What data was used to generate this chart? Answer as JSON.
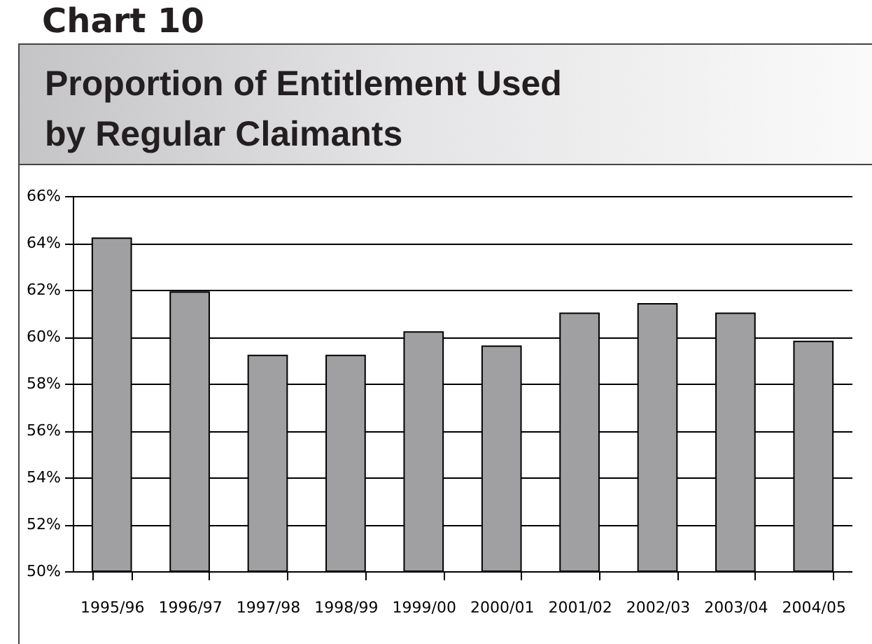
{
  "chart_data": {
    "type": "bar",
    "title": "Proportion of Entitlement Used by Regular Claimants",
    "annotations": [
      "Chart 10"
    ],
    "categories": [
      "1995/96",
      "1996/97",
      "1997/98",
      "1998/99",
      "1999/00",
      "2000/01",
      "2001/02",
      "2002/03",
      "2003/04",
      "2004/05"
    ],
    "values": [
      64.2,
      61.9,
      59.2,
      59.2,
      60.2,
      59.6,
      61.0,
      61.4,
      61.0,
      59.8
    ],
    "color": "#a0a0a2",
    "ylim": [
      50,
      66
    ],
    "yticks": [
      {
        "value": 50,
        "label": "50%"
      },
      {
        "value": 52,
        "label": "52%"
      },
      {
        "value": 54,
        "label": "54%"
      },
      {
        "value": 56,
        "label": "56%"
      },
      {
        "value": 58,
        "label": "58%"
      },
      {
        "value": 60,
        "label": "60%"
      },
      {
        "value": 62,
        "label": "62%"
      },
      {
        "value": 64,
        "label": "64%"
      },
      {
        "value": 66,
        "label": "66%"
      }
    ],
    "grid": "y"
  }
}
